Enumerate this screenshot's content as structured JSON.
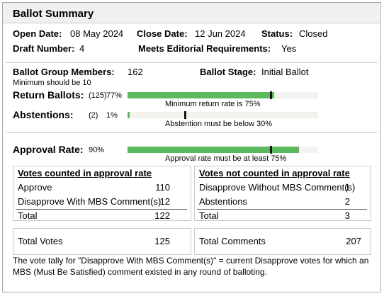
{
  "title": "Ballot Summary",
  "info": {
    "open_date": {
      "label": "Open Date:",
      "value": "08 May 2024"
    },
    "close_date": {
      "label": "Close Date:",
      "value": "12 Jun 2024"
    },
    "status": {
      "label": "Status:",
      "value": "Closed"
    },
    "draft_number": {
      "label": "Draft Number:",
      "value": 4
    },
    "meets_editorial": {
      "label": "Meets Editorial Requirements:",
      "value": "Yes"
    }
  },
  "members": {
    "label": "Ballot Group Members:",
    "value": 162,
    "note": "Minimum should be 10"
  },
  "stage": {
    "label": "Ballot Stage:",
    "value": "Initial Ballot"
  },
  "meters": {
    "scale": [
      0,
      100
    ],
    "items": [
      {
        "label": "Return Ballots:",
        "count_label": "(125)",
        "value": 77,
        "value_label": "77%",
        "threshold": 75,
        "note": "Minimum return rate is 75%"
      },
      {
        "label": "Abstentions:",
        "count_label": "(2)",
        "value": 1,
        "value_label": "1%",
        "threshold": 30,
        "note": "Abstention must be below 30%"
      },
      {
        "label": "Approval Rate:",
        "value": 90,
        "value_label": "90%",
        "threshold": 75,
        "note": "Approval rate must be at least 75%"
      }
    ]
  },
  "counted": {
    "title": "Votes counted in approval rate",
    "rows": [
      [
        "Approve",
        110
      ],
      [
        "Disapprove With MBS Comment(s)",
        12
      ]
    ],
    "total": [
      "Total",
      122
    ]
  },
  "not_counted": {
    "title": "Votes not counted in approval rate",
    "rows": [
      [
        "Disapprove Without MBS Comment(s)",
        1
      ],
      [
        "Abstentions",
        2
      ]
    ],
    "total": [
      "Total",
      3
    ]
  },
  "total_votes": [
    "Total Votes",
    125
  ],
  "total_comments": [
    "Total Comments",
    207
  ],
  "footnote": "The vote tally for \"Disapprove With MBS Comment(s)\" = current Disapprove votes for which an MBS (Must Be Satisfied) comment existed in any round of balloting."
}
